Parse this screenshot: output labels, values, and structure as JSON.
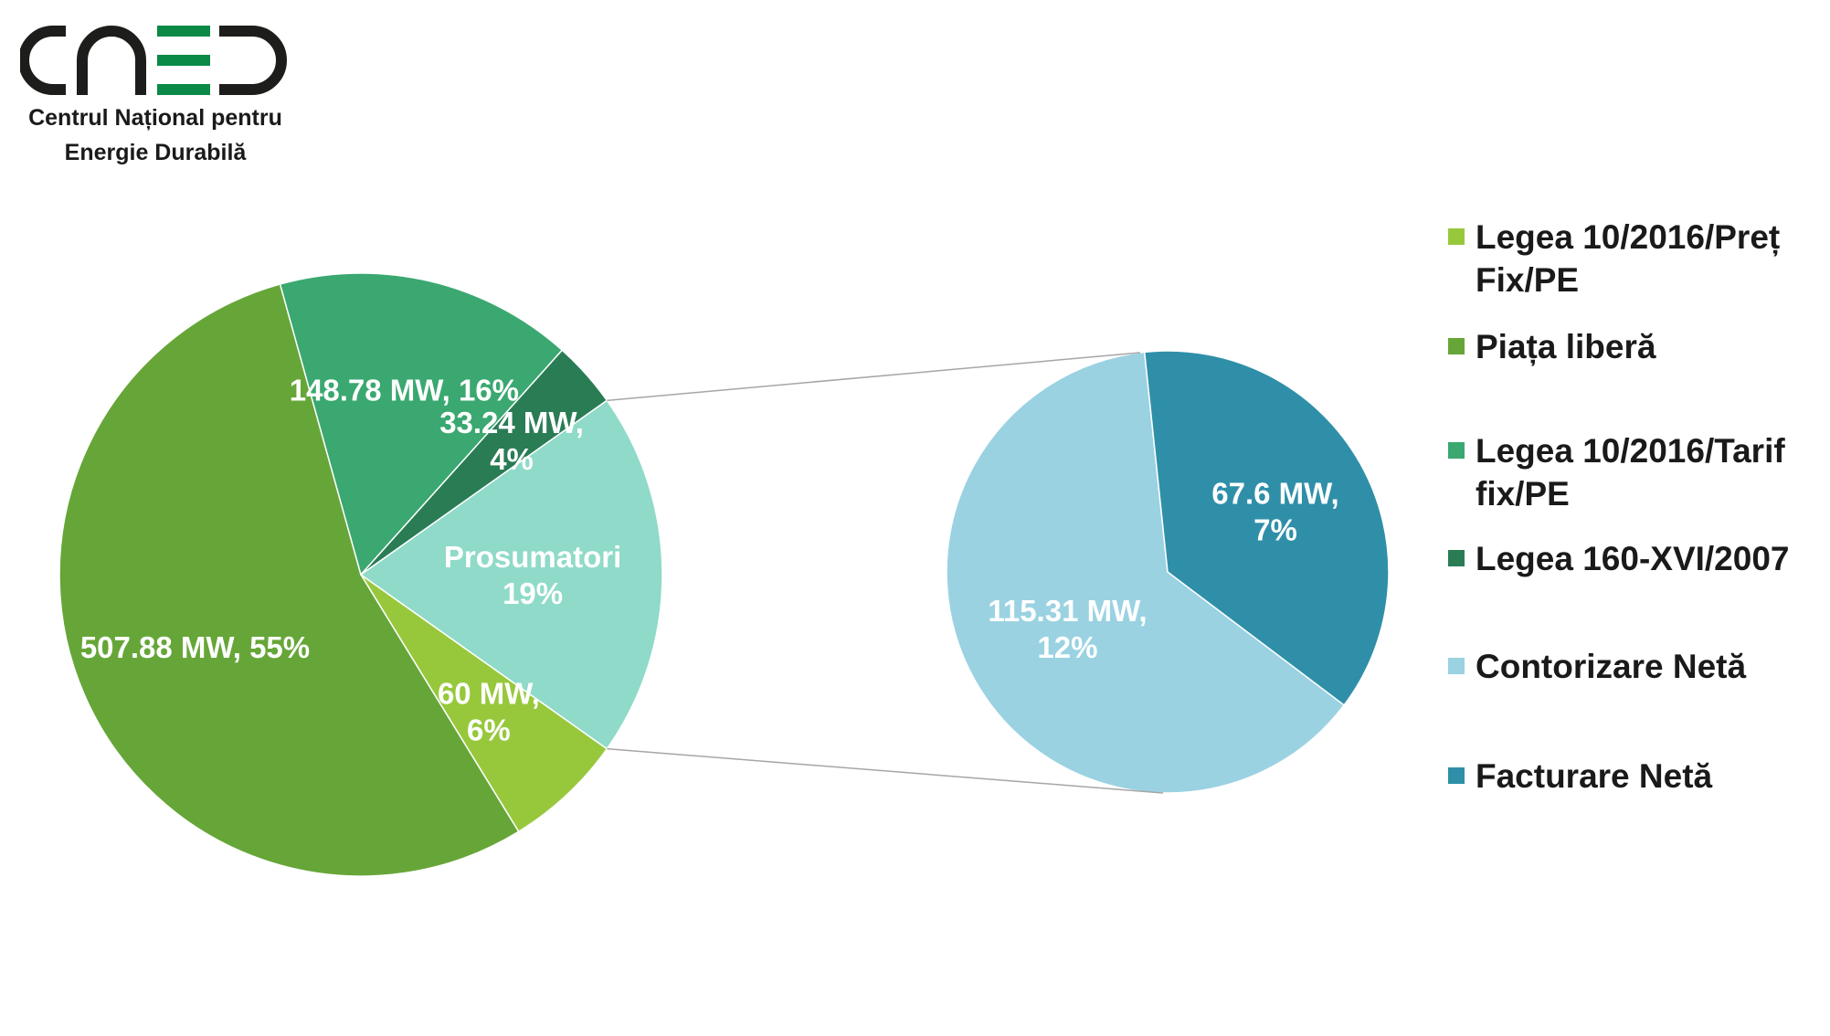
{
  "logo": {
    "mark_text": "CNED",
    "line1": "Centrul Național pentru",
    "line2": "Energie Durabilă",
    "colors": {
      "dark": "#1d1d1b",
      "green": "#0a8a46"
    }
  },
  "chart_data": {
    "type": "bar-of-pie",
    "unit": "MW",
    "main_pie": [
      {
        "name": "Legea 10/2016/Preț Fix/PE",
        "value": 60,
        "percent": 6,
        "label": "60 MW,\n6%",
        "color": "#97c83c"
      },
      {
        "name": "Piața liberă",
        "value": 507.88,
        "percent": 55,
        "label": "507.88 MW, 55%",
        "color": "#66a638"
      },
      {
        "name": "Legea 10/2016/Tarif fix/PE",
        "value": 148.78,
        "percent": 16,
        "label": "148.78 MW, 16%",
        "color": "#3aa870"
      },
      {
        "name": "Legea 160-XVI/2007",
        "value": 33.24,
        "percent": 4,
        "label": "33.24 MW,\n4%",
        "color": "#2a7c55"
      },
      {
        "name": "Prosumatori",
        "value": 182.91,
        "percent": 19,
        "label": "Prosumatori\n19%",
        "color": "#8fdac8"
      }
    ],
    "secondary_pie": [
      {
        "name": "Contorizare Netă",
        "value": 115.31,
        "percent": 12,
        "label": "115.31 MW,\n12%",
        "color": "#9ad2e2"
      },
      {
        "name": "Facturare Netă",
        "value": 67.6,
        "percent": 7,
        "label": "67.6 MW,\n7%",
        "color": "#2f8fa8"
      }
    ],
    "legend": [
      {
        "label": "Legea 10/2016/Preț Fix/PE",
        "color": "#97c83c"
      },
      {
        "label": "Piața liberă",
        "color": "#66a638"
      },
      {
        "label": "Legea 10/2016/Tarif fix/PE",
        "color": "#3aa870"
      },
      {
        "label": "Legea 160-XVI/2007",
        "color": "#2a7c55"
      },
      {
        "label": "Contorizare Netă",
        "color": "#9ad2e2"
      },
      {
        "label": "Facturare Netă",
        "color": "#2f8fa8"
      }
    ],
    "legend_position": "right",
    "connector_color": "#a6a6a6"
  }
}
